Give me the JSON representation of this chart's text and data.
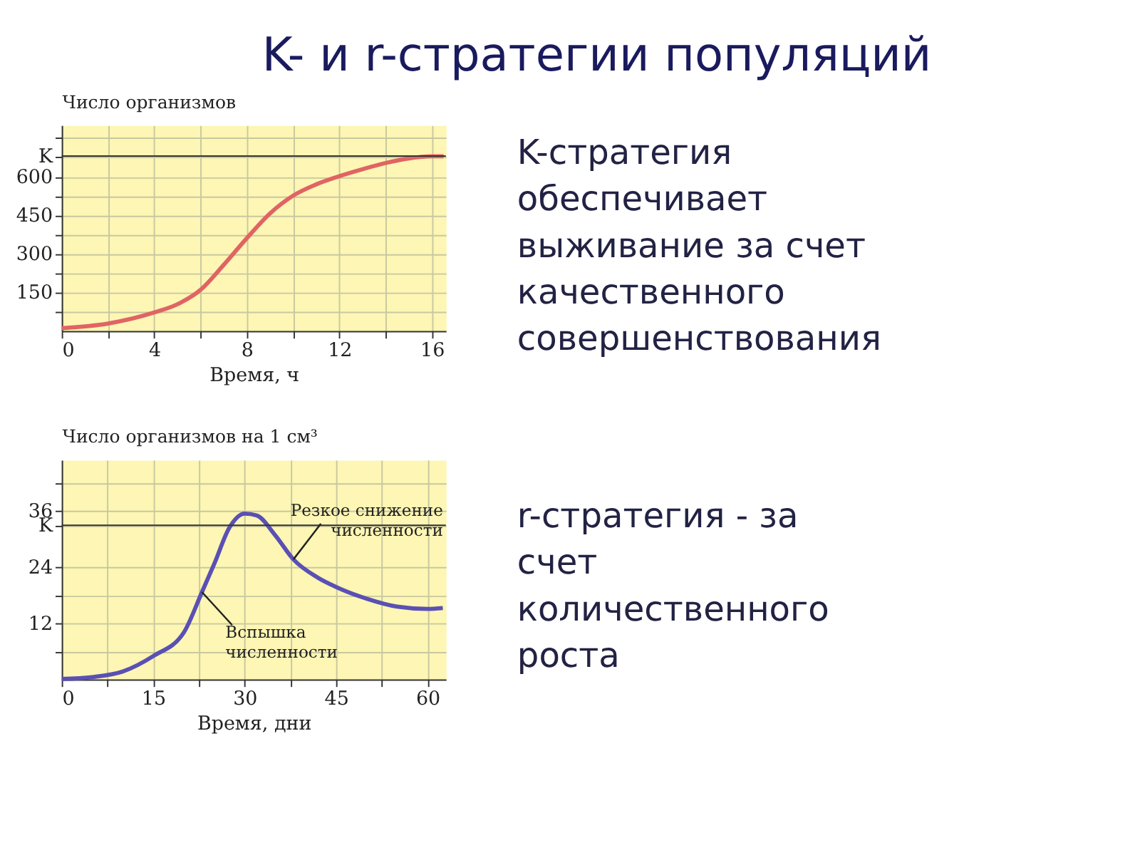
{
  "chart_data": [
    {
      "type": "line",
      "xlabel": "Время, ч",
      "ylabel": "Число организмов",
      "x": [
        0,
        2,
        4,
        5,
        6,
        7,
        8,
        9,
        10,
        11,
        12,
        13,
        14,
        15,
        16,
        16.5
      ],
      "series": [
        {
          "color": "#e06464",
          "values": [
            11,
            29,
            72,
            104,
            160,
            257,
            361,
            457,
            526,
            570,
            602,
            629,
            653,
            671,
            679,
            679
          ]
        }
      ],
      "xlim": [
        0,
        16.6
      ],
      "ylim": [
        0,
        800
      ],
      "xticks": [
        0,
        {
          "value": 2,
          "label": null
        },
        4,
        {
          "value": 6,
          "label": null
        },
        8,
        {
          "value": 10,
          "label": null
        },
        12,
        {
          "value": 14,
          "label": null
        },
        16
      ],
      "yticks": [
        {
          "value": 75,
          "label": null
        },
        150,
        {
          "value": 225,
          "label": null
        },
        300,
        {
          "value": 375,
          "label": null
        },
        450,
        {
          "value": 525,
          "label": null
        },
        600,
        {
          "value": 680,
          "label": "K"
        },
        {
          "value": 750,
          "label": null
        }
      ],
      "ref_lines": [
        {
          "axis": "y",
          "value": 680,
          "color": "#333333"
        }
      ],
      "grid": true,
      "marker": "none",
      "line_style": "solid"
    },
    {
      "type": "line",
      "xlabel": "Время, дни",
      "ylabel": "Число организмов на 1 см³",
      "x": [
        0,
        5,
        10,
        15,
        20,
        23,
        25,
        27.5,
        30,
        32,
        35,
        38,
        42,
        45,
        50,
        55,
        60,
        62.5
      ],
      "series": [
        {
          "color": "#5a50b4",
          "values": [
            0.1,
            0.5,
            1.7,
            5.0,
            10.0,
            18.7,
            24.7,
            32.5,
            35.5,
            35.1,
            30.9,
            25.7,
            21.8,
            19.8,
            17.3,
            15.6,
            15.1,
            15.3
          ]
        }
      ],
      "xlim": [
        0,
        63
      ],
      "ylim": [
        0,
        47
      ],
      "xticks": [
        0,
        {
          "value": 7.5,
          "label": null
        },
        15,
        {
          "value": 22.5,
          "label": null
        },
        30,
        {
          "value": 37.5,
          "label": null
        },
        45,
        {
          "value": 52.5,
          "label": null
        },
        60
      ],
      "yticks": [
        {
          "value": 6,
          "label": null
        },
        12,
        {
          "value": 18,
          "label": null
        },
        24,
        {
          "value": 33,
          "label": "K"
        },
        36,
        {
          "value": 42,
          "label": null
        }
      ],
      "ref_lines": [
        {
          "axis": "y",
          "value": 33,
          "color": "#333333"
        }
      ],
      "grid": true,
      "marker": "none",
      "line_style": "solid",
      "annotations": [
        {
          "text": "Резкое снижение\nчисленности",
          "x": 38,
          "y": 25.7
        },
        {
          "text": "Вспышка\nчисленности",
          "x": 23,
          "y": 18.7
        }
      ]
    },
    {
      "type": "other",
      "title": "K- и r-стратегии популяций",
      "annotations": [
        "K-стратегия обеспечивает выживание за счет качественного совершенствования",
        "r-стратегия - за счет количественного роста"
      ]
    }
  ]
}
